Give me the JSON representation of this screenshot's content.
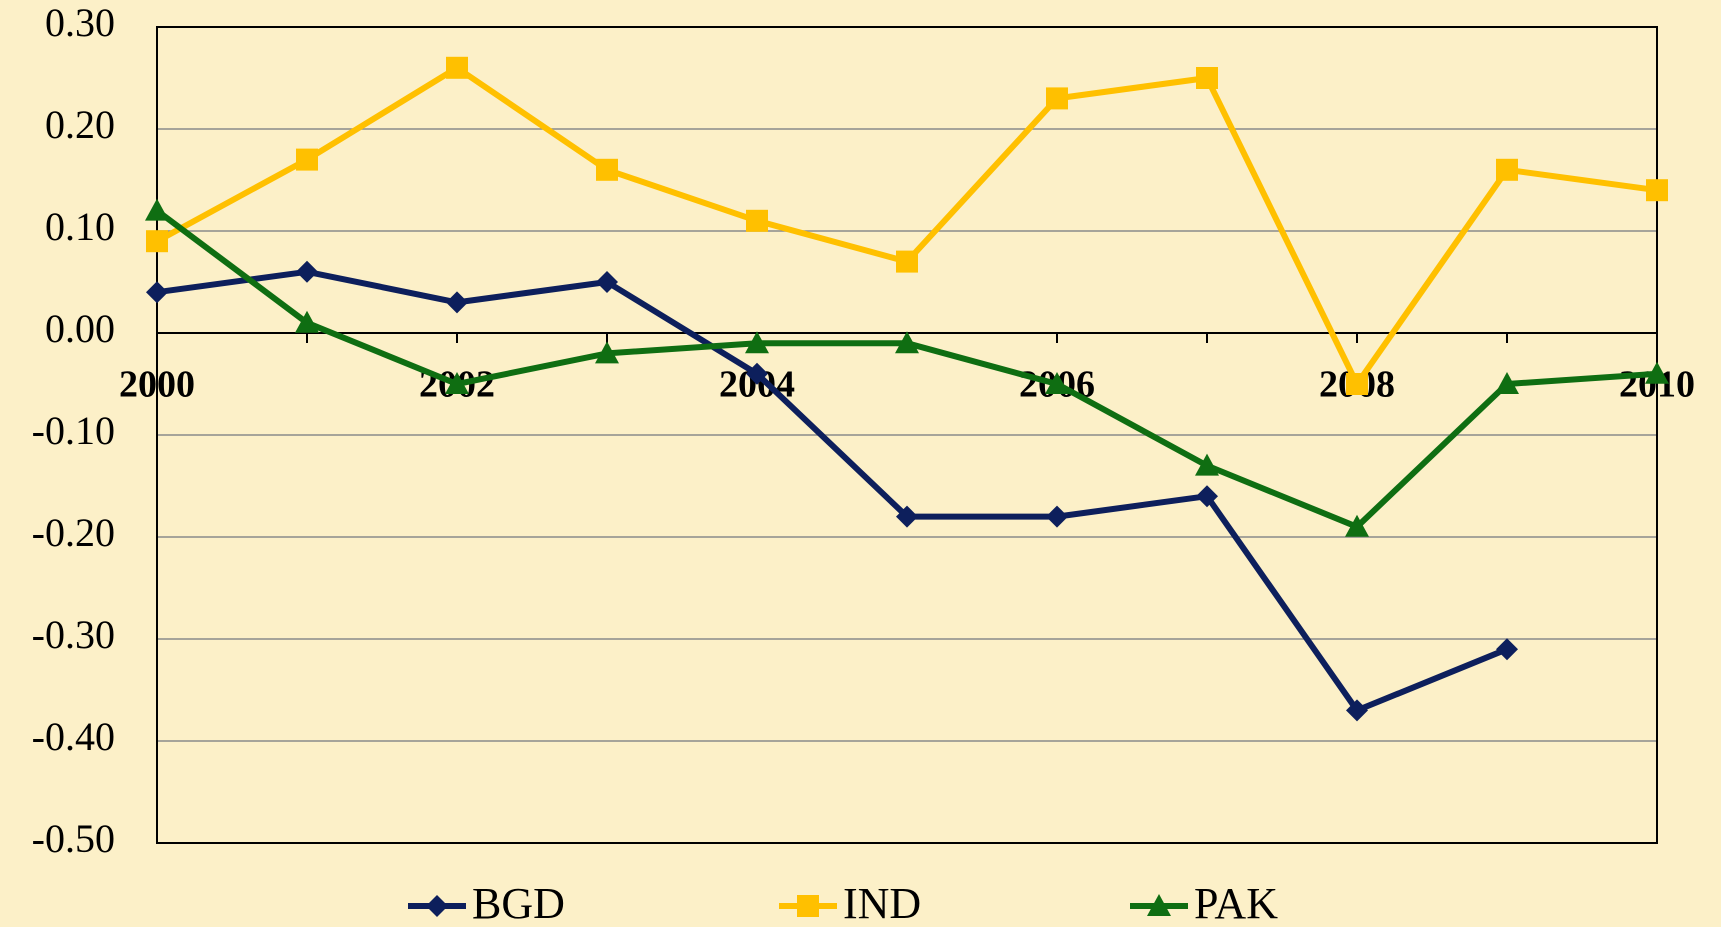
{
  "chart_data": {
    "type": "line",
    "x": [
      2000,
      2001,
      2002,
      2003,
      2004,
      2005,
      2006,
      2007,
      2008,
      2009,
      2010
    ],
    "xlim": [
      2000,
      2010
    ],
    "xticks": [
      2000,
      2002,
      2004,
      2006,
      2008,
      2010
    ],
    "ylim": [
      -0.5,
      0.3
    ],
    "yticks": [
      {
        "value": -0.5,
        "label": "-0.50"
      },
      {
        "value": -0.4,
        "label": "-0.40"
      },
      {
        "value": -0.3,
        "label": "-0.30"
      },
      {
        "value": -0.2,
        "label": "-0.20"
      },
      {
        "value": -0.1,
        "label": "-0.10"
      },
      {
        "value": 0,
        "label": "0.00"
      },
      {
        "value": 0.1,
        "label": "0.10"
      },
      {
        "value": 0.2,
        "label": "0.20"
      },
      {
        "value": 0.3,
        "label": "0.30"
      }
    ],
    "grid": true,
    "legend": "bottom",
    "series": [
      {
        "name": "BGD",
        "color": "#0d1f5c",
        "marker": "diamond",
        "values": [
          0.04,
          0.06,
          0.03,
          0.05,
          -0.04,
          -0.18,
          -0.18,
          -0.16,
          -0.37,
          -0.31,
          null
        ]
      },
      {
        "name": "IND",
        "color": "#ffc000",
        "marker": "square",
        "values": [
          0.09,
          0.17,
          0.26,
          0.16,
          0.11,
          0.07,
          0.23,
          0.25,
          -0.05,
          0.16,
          0.14
        ]
      },
      {
        "name": "PAK",
        "color": "#0f6e12",
        "marker": "triangle",
        "values": [
          0.12,
          0.01,
          -0.05,
          -0.02,
          -0.01,
          -0.01,
          -0.05,
          -0.13,
          -0.19,
          -0.05,
          -0.04
        ]
      }
    ]
  }
}
